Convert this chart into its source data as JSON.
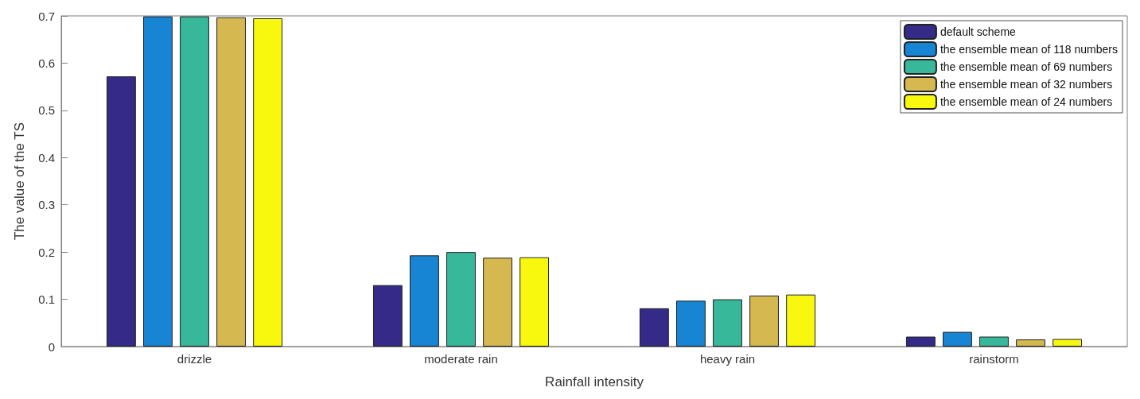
{
  "chart_data": {
    "type": "bar",
    "xlabel": "Rainfall intensity",
    "ylabel": "The value of the TS",
    "categories": [
      "drizzle",
      "moderate rain",
      "heavy rain",
      "rainstorm"
    ],
    "series": [
      {
        "name": "default scheme",
        "color": "#352a87",
        "values": [
          0.572,
          0.13,
          0.081,
          0.021
        ]
      },
      {
        "name": "the ensemble mean of 118 numbers",
        "color": "#1884d4",
        "values": [
          0.699,
          0.193,
          0.097,
          0.031
        ]
      },
      {
        "name": "the ensemble mean of 69 numbers",
        "color": "#38b89a",
        "values": [
          0.699,
          0.2,
          0.1,
          0.021
        ]
      },
      {
        "name": "the ensemble mean of 32 numbers",
        "color": "#d5b84f",
        "values": [
          0.697,
          0.188,
          0.108,
          0.015
        ]
      },
      {
        "name": "the ensemble mean of 24 numbers",
        "color": "#f8f80f",
        "values": [
          0.695,
          0.189,
          0.11,
          0.016
        ]
      }
    ],
    "ylim": [
      0,
      0.7
    ],
    "yticks": [
      0,
      0.1,
      0.2,
      0.3,
      0.4,
      0.5,
      0.6,
      0.7
    ],
    "grid": false,
    "legend": "top right"
  }
}
